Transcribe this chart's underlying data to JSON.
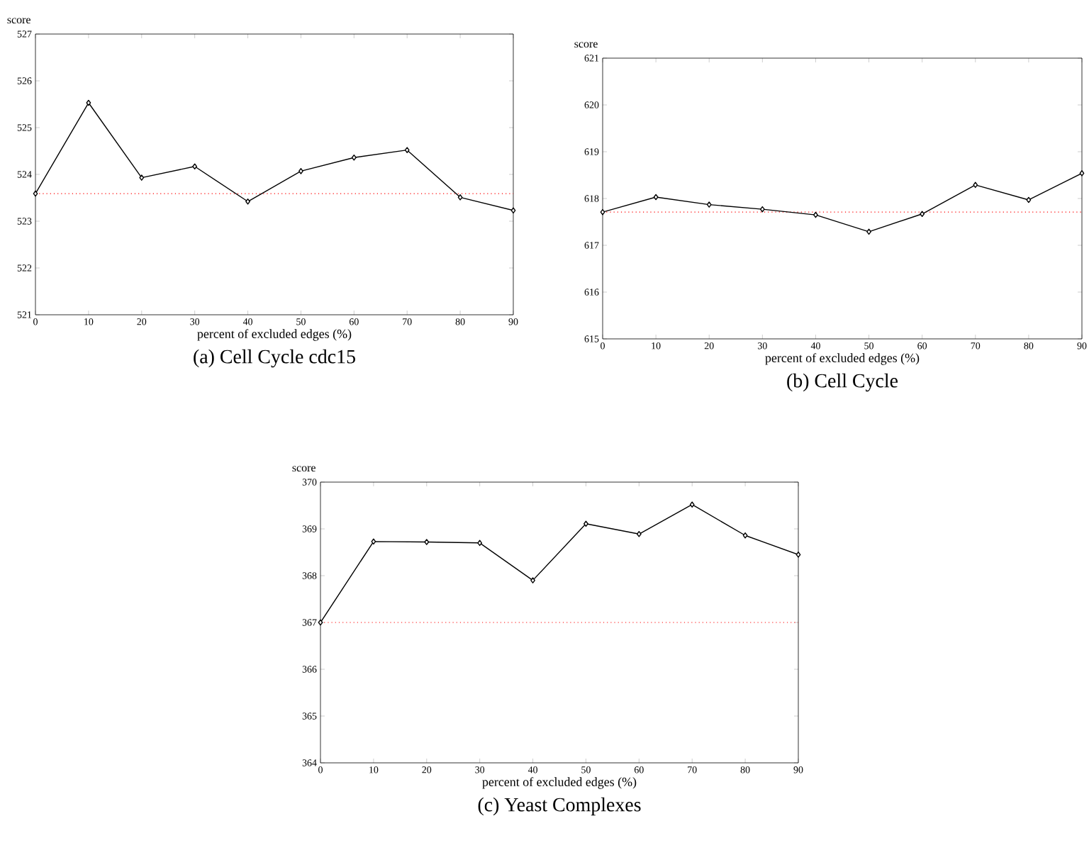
{
  "chart_data": [
    {
      "type": "line",
      "title": "(a) Cell Cycle cdc15",
      "xlabel": "percent of excluded edges (%)",
      "ylabel": "score",
      "x": [
        0,
        10,
        20,
        30,
        40,
        50,
        60,
        70,
        80,
        90
      ],
      "series": [
        {
          "color": "#000000",
          "values": [
            523.59,
            525.53,
            523.93,
            524.17,
            523.42,
            524.07,
            524.36,
            524.52,
            523.51,
            523.23
          ]
        }
      ],
      "xlim": [
        0,
        90
      ],
      "ylim": [
        521,
        527
      ],
      "xticks": [
        0,
        10,
        20,
        30,
        40,
        50,
        60,
        70,
        80,
        90
      ],
      "yticks": [
        521,
        522,
        523,
        524,
        525,
        526,
        527
      ],
      "marker": "diamond",
      "line_style": "solid",
      "grid": false,
      "ref_lines": [
        {
          "axis": "y",
          "value": 523.59,
          "color": "#ff0000",
          "line_style": "dotted"
        }
      ]
    },
    {
      "type": "line",
      "title": "(b) Cell Cycle",
      "xlabel": "percent of excluded edges (%)",
      "ylabel": "score",
      "x": [
        0,
        10,
        20,
        30,
        40,
        50,
        60,
        70,
        80,
        90
      ],
      "series": [
        {
          "color": "#000000",
          "values": [
            617.71,
            618.03,
            617.87,
            617.77,
            617.65,
            617.29,
            617.67,
            618.29,
            617.97,
            618.54
          ]
        }
      ],
      "xlim": [
        0,
        90
      ],
      "ylim": [
        615,
        621
      ],
      "xticks": [
        0,
        10,
        20,
        30,
        40,
        50,
        60,
        70,
        80,
        90
      ],
      "yticks": [
        615,
        616,
        617,
        618,
        619,
        620,
        621
      ],
      "marker": "diamond",
      "line_style": "solid",
      "grid": false,
      "ref_lines": [
        {
          "axis": "y",
          "value": 617.71,
          "color": "#ff0000",
          "line_style": "dotted"
        }
      ]
    },
    {
      "type": "line",
      "title": "(c) Yeast Complexes",
      "xlabel": "percent of excluded edges (%)",
      "ylabel": "score",
      "x": [
        0,
        10,
        20,
        30,
        40,
        50,
        60,
        70,
        80,
        90
      ],
      "series": [
        {
          "color": "#000000",
          "values": [
            367.0,
            368.73,
            368.72,
            368.7,
            367.9,
            369.11,
            368.89,
            369.52,
            368.86,
            368.45
          ]
        }
      ],
      "xlim": [
        0,
        90
      ],
      "ylim": [
        364,
        370
      ],
      "xticks": [
        0,
        10,
        20,
        30,
        40,
        50,
        60,
        70,
        80,
        90
      ],
      "yticks": [
        364,
        365,
        366,
        367,
        368,
        369,
        370
      ],
      "marker": "diamond",
      "line_style": "solid",
      "grid": false,
      "ref_lines": [
        {
          "axis": "y",
          "value": 367,
          "color": "#ff0000",
          "line_style": "dotted"
        }
      ]
    }
  ]
}
